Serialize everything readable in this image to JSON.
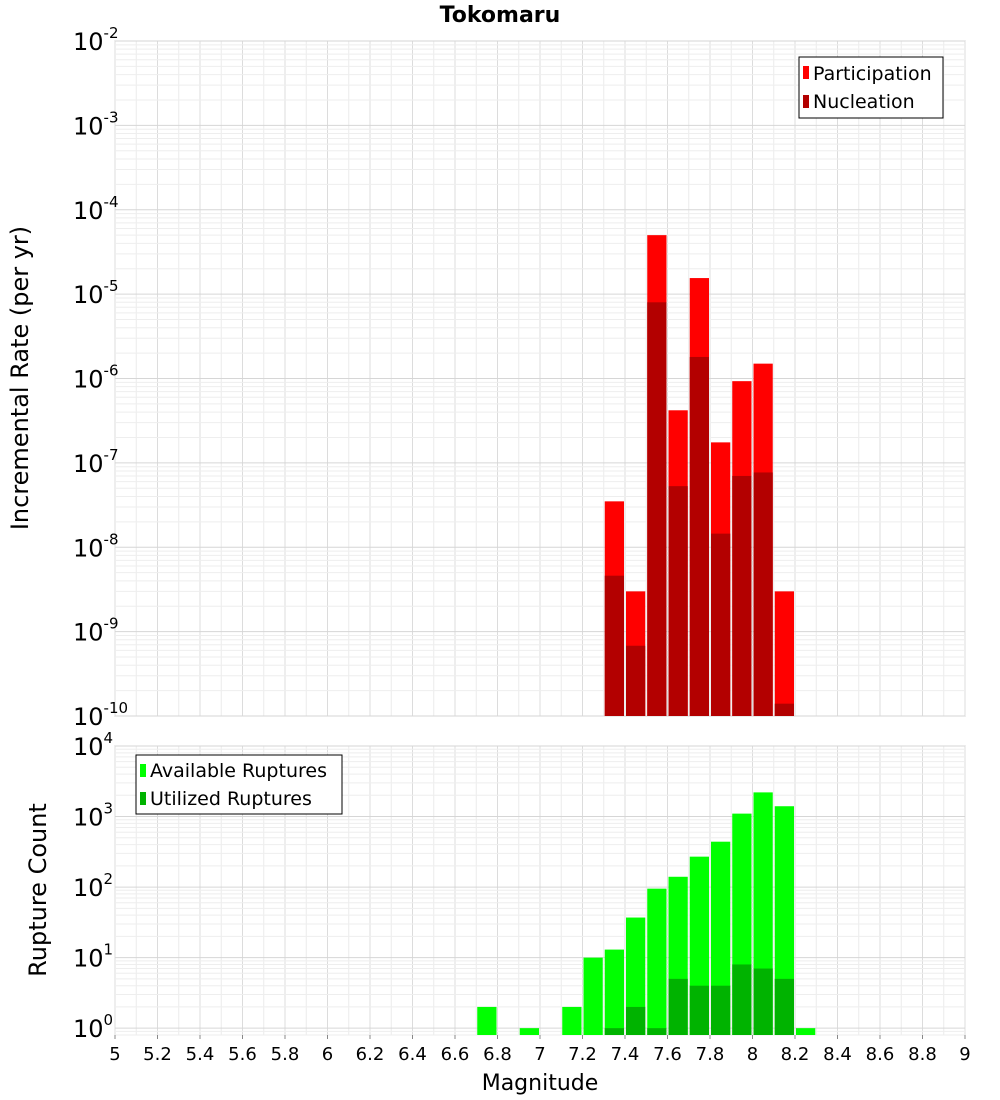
{
  "chart_data": [
    {
      "type": "bar",
      "title": "Tokomaru",
      "xlabel": "",
      "ylabel": "Incremental Rate (per yr)",
      "yscale": "log",
      "ylim": [
        1e-10,
        0.01
      ],
      "ytick_base": "10",
      "ytick_exponents": [
        "-10",
        "-9",
        "-8",
        "-7",
        "-6",
        "-5",
        "-4",
        "-3",
        "-2"
      ],
      "xlim": [
        5,
        9
      ],
      "grid": true,
      "legend_position": "top-right",
      "bar_width": 0.1,
      "x": [
        7.35,
        7.45,
        7.55,
        7.65,
        7.75,
        7.85,
        7.95,
        8.05,
        8.15
      ],
      "series": [
        {
          "name": "Participation",
          "color": "#ff0000",
          "values": [
            3.5e-08,
            3e-09,
            5e-05,
            4.2e-07,
            1.55e-05,
            1.75e-07,
            9.3e-07,
            1.5e-06,
            3e-09
          ]
        },
        {
          "name": "Nucleation",
          "color": "#b30000",
          "values": [
            4.6e-09,
            6.8e-10,
            8e-06,
            5.3e-08,
            1.8e-06,
            1.45e-08,
            7e-08,
            7.7e-08,
            1.4e-10
          ]
        }
      ]
    },
    {
      "type": "bar",
      "title": "",
      "xlabel": "Magnitude",
      "ylabel": "Rupture Count",
      "yscale": "log",
      "ylim": [
        0.8,
        10000
      ],
      "ytick_base": "10",
      "ytick_exponents": [
        "0",
        "1",
        "2",
        "3",
        "4"
      ],
      "xlim": [
        5,
        9
      ],
      "xticks": [
        "5",
        "5.2",
        "5.4",
        "5.6",
        "5.8",
        "6",
        "6.2",
        "6.4",
        "6.6",
        "6.8",
        "7",
        "7.2",
        "7.4",
        "7.6",
        "7.8",
        "8",
        "8.2",
        "8.4",
        "8.6",
        "8.8",
        "9"
      ],
      "grid": true,
      "legend_position": "top-left",
      "bar_width": 0.1,
      "x": [
        6.75,
        6.95,
        7.15,
        7.25,
        7.35,
        7.45,
        7.55,
        7.65,
        7.75,
        7.85,
        7.95,
        8.05,
        8.15,
        8.25
      ],
      "series": [
        {
          "name": "Available Ruptures",
          "color": "#00ff00",
          "values": [
            2,
            1,
            2,
            10,
            13,
            37,
            95,
            140,
            270,
            440,
            1100,
            2200,
            1400,
            1
          ]
        },
        {
          "name": "Utilized Ruptures",
          "color": "#00b300",
          "values": [
            0,
            0,
            0,
            0,
            1,
            2,
            1,
            5,
            4,
            4,
            8,
            7,
            5,
            0
          ]
        }
      ]
    }
  ]
}
